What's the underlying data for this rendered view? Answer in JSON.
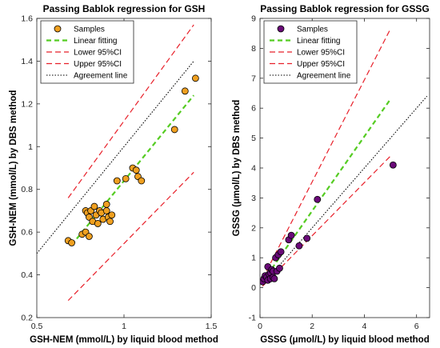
{
  "chart_data": [
    {
      "type": "scatter",
      "title": "Passing Bablok regression for GSH",
      "xlabel": "GSH-NEM (mmol/L) by liquid blood method",
      "ylabel": "GSH-NEM (mmol/L) by DBS method",
      "xlim": [
        0.5,
        1.5
      ],
      "ylim": [
        0.2,
        1.6
      ],
      "xticks": [
        "0.5",
        "1",
        "1.5"
      ],
      "yticks": [
        "0.2",
        "0.4",
        "0.6",
        "0.8",
        "1",
        "1.2",
        "1.4",
        "1.6"
      ],
      "legend_position": "top-left",
      "colors": {
        "samples": "#f0a020",
        "fit": "#55cc22",
        "ci": "#e8202a",
        "agreement": "#000000"
      },
      "series": [
        {
          "name": "Samples",
          "kind": "points",
          "x": [
            0.68,
            0.7,
            0.76,
            0.78,
            0.78,
            0.79,
            0.8,
            0.8,
            0.81,
            0.82,
            0.83,
            0.84,
            0.85,
            0.86,
            0.87,
            0.88,
            0.9,
            0.9,
            0.91,
            0.92,
            0.93,
            0.96,
            1.01,
            1.05,
            1.07,
            1.08,
            1.1,
            1.29,
            1.35,
            1.41
          ],
          "y": [
            0.56,
            0.55,
            0.59,
            0.7,
            0.6,
            0.69,
            0.58,
            0.67,
            0.7,
            0.65,
            0.72,
            0.68,
            0.64,
            0.7,
            0.69,
            0.66,
            0.73,
            0.7,
            0.67,
            0.65,
            0.68,
            0.84,
            0.85,
            0.9,
            0.89,
            0.86,
            0.84,
            1.08,
            1.26,
            1.32
          ]
        },
        {
          "name": "Linear fitting",
          "kind": "line",
          "x": [
            0.7,
            1.4
          ],
          "y": [
            0.54,
            1.24
          ]
        },
        {
          "name": "Lower 95%CI",
          "kind": "line",
          "x": [
            0.68,
            1.4
          ],
          "y": [
            0.28,
            0.88
          ]
        },
        {
          "name": "Upper 95%CI",
          "kind": "line",
          "x": [
            0.68,
            1.4
          ],
          "y": [
            0.76,
            1.57
          ]
        },
        {
          "name": "Agreement line",
          "kind": "line",
          "x": [
            0.5,
            1.4
          ],
          "y": [
            0.5,
            1.4
          ]
        }
      ]
    },
    {
      "type": "scatter",
      "title": "Passing Bablok regression for GSSG",
      "xlabel": "GSSG (μmol/L) by liquid blood method",
      "ylabel": "GSSG (μmol/L) by DBS method",
      "xlim": [
        0,
        6.5
      ],
      "ylim": [
        -1,
        9
      ],
      "xticks": [
        "0",
        "2",
        "4",
        "6"
      ],
      "yticks": [
        "-1",
        "0",
        "1",
        "2",
        "3",
        "4",
        "5",
        "6",
        "7",
        "8",
        "9"
      ],
      "legend_position": "top-left",
      "colors": {
        "samples": "#6a0a78",
        "fit": "#55cc22",
        "ci": "#e8202a",
        "agreement": "#000000"
      },
      "series": [
        {
          "name": "Samples",
          "kind": "points",
          "x": [
            0.1,
            0.15,
            0.2,
            0.25,
            0.3,
            0.3,
            0.35,
            0.4,
            0.4,
            0.45,
            0.5,
            0.5,
            0.55,
            0.6,
            0.65,
            0.7,
            0.75,
            0.8,
            1.1,
            1.2,
            1.5,
            1.8,
            2.2,
            5.1
          ],
          "y": [
            0.2,
            0.3,
            0.4,
            0.35,
            0.7,
            0.25,
            0.45,
            0.5,
            0.3,
            0.6,
            0.35,
            0.55,
            0.3,
            1.0,
            0.55,
            1.1,
            0.65,
            1.2,
            1.6,
            1.75,
            1.4,
            1.65,
            2.95,
            4.1
          ]
        },
        {
          "name": "Linear fitting",
          "kind": "line",
          "x": [
            0.1,
            5.0
          ],
          "y": [
            0.2,
            6.3
          ]
        },
        {
          "name": "Lower 95%CI",
          "kind": "line",
          "x": [
            0.1,
            5.0
          ],
          "y": [
            0.05,
            4.4
          ]
        },
        {
          "name": "Upper 95%CI",
          "kind": "line",
          "x": [
            0.1,
            5.0
          ],
          "y": [
            0.3,
            8.65
          ]
        },
        {
          "name": "Agreement line",
          "kind": "line",
          "x": [
            0.1,
            6.4
          ],
          "y": [
            0.1,
            6.4
          ]
        }
      ]
    }
  ]
}
